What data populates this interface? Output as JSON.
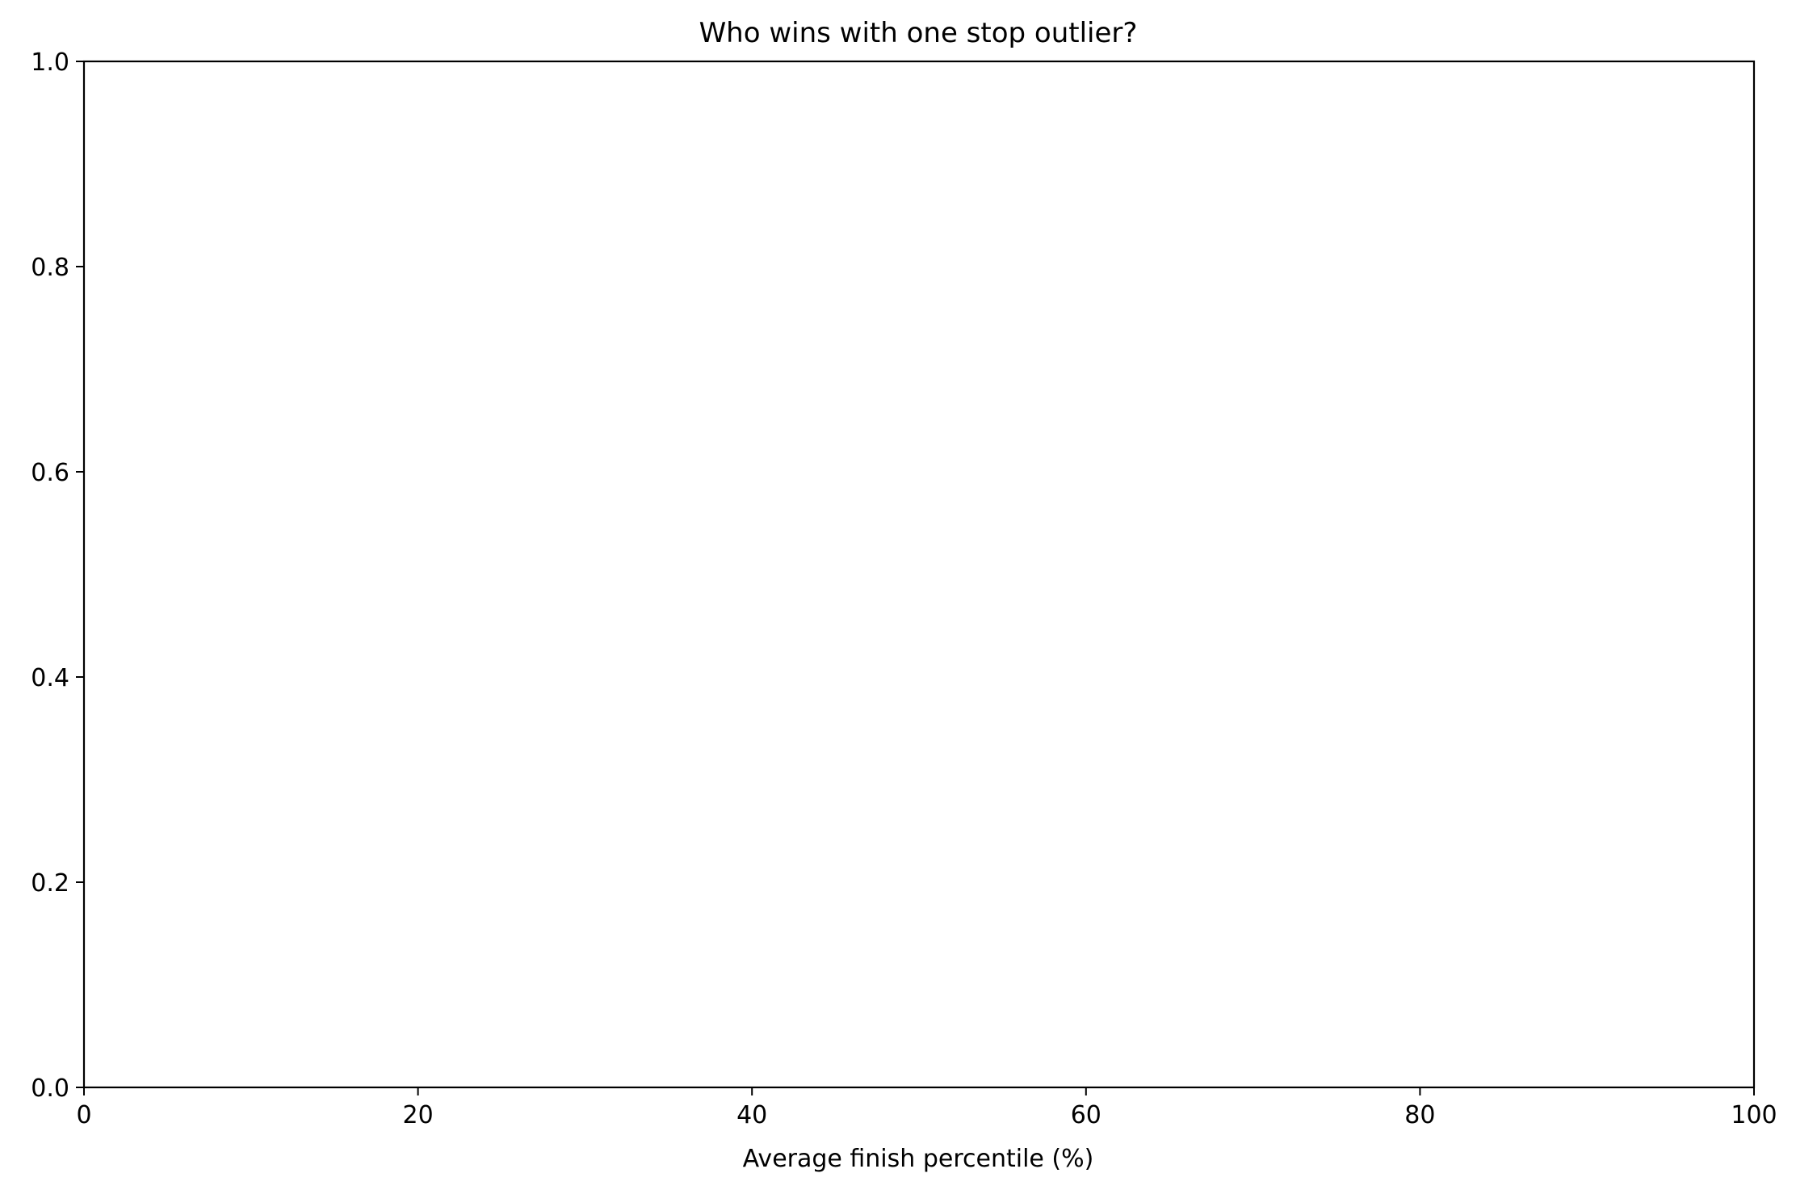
{
  "chart_data": {
    "type": "bar",
    "title": "Who wins with one stop outlier?",
    "xlabel": "Average finish percentile (%)",
    "ylabel": "",
    "xlim": [
      0,
      100
    ],
    "ylim": [
      0,
      1.0
    ],
    "x_ticks": [
      "0",
      "20",
      "40",
      "60",
      "80",
      "100"
    ],
    "y_ticks": [
      "0.0",
      "0.2",
      "0.4",
      "0.6",
      "0.8",
      "1.0"
    ],
    "categories": [],
    "values": [],
    "grid": false,
    "legend": "none"
  }
}
